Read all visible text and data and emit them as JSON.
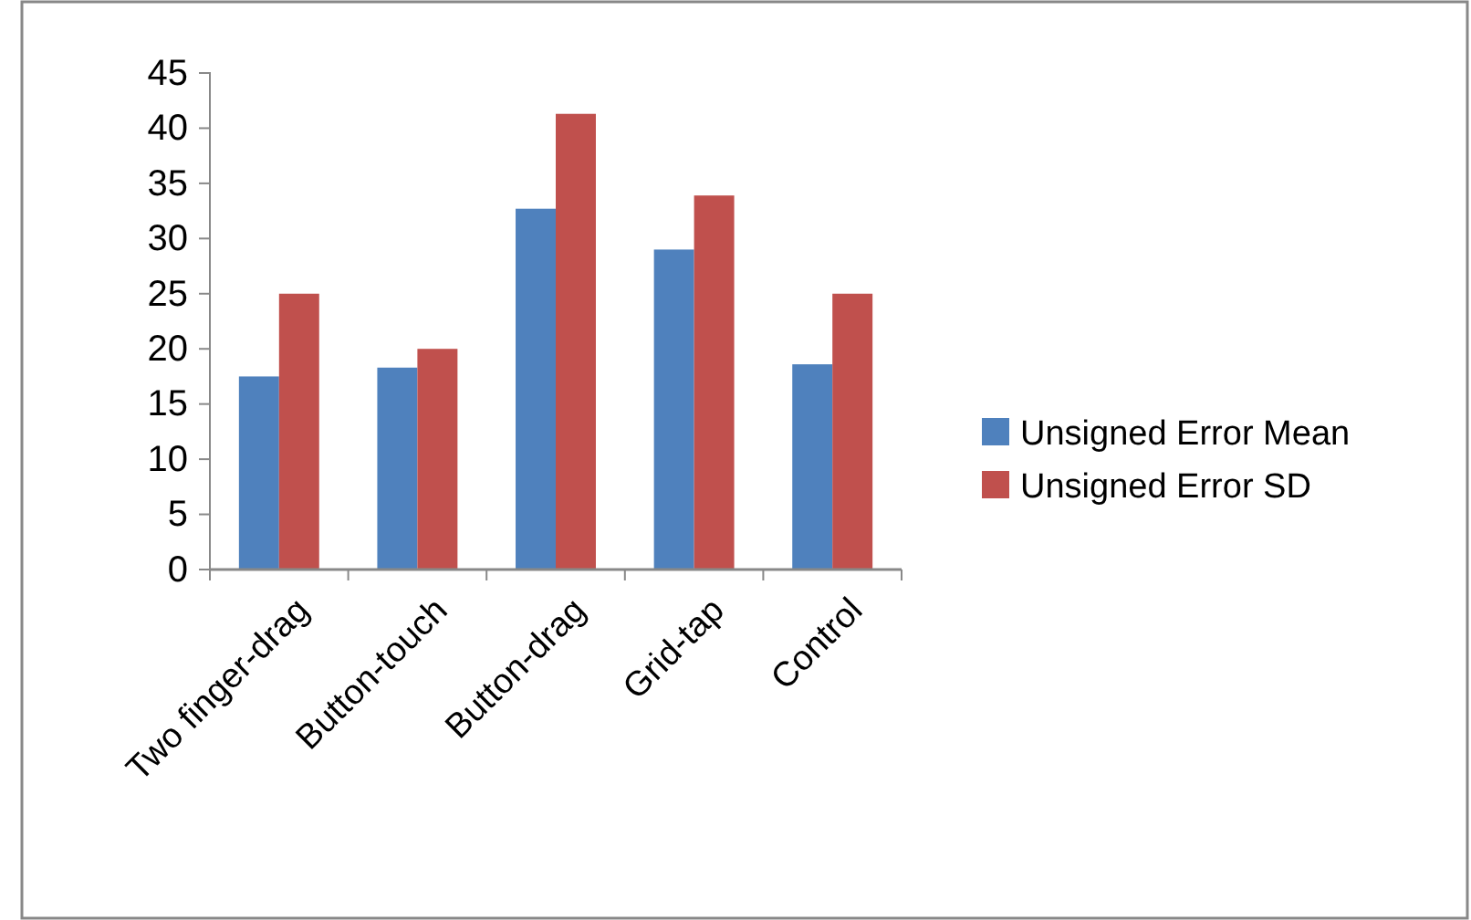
{
  "chart_data": {
    "type": "bar",
    "categories": [
      "Two finger-drag",
      "Button-touch",
      "Button-drag",
      "Grid-tap",
      "Control"
    ],
    "series": [
      {
        "name": "Unsigned Error Mean",
        "color": "#4f81bd",
        "values": [
          17.5,
          18.3,
          32.7,
          29.0,
          18.6
        ]
      },
      {
        "name": "Unsigned Error SD",
        "color": "#c0504d",
        "values": [
          25.0,
          20.0,
          41.3,
          33.9,
          25.0
        ]
      }
    ],
    "ylim": [
      0,
      45
    ],
    "yticks": [
      0,
      5,
      10,
      15,
      20,
      25,
      30,
      35,
      40,
      45
    ],
    "grid": false,
    "legend": "right"
  }
}
